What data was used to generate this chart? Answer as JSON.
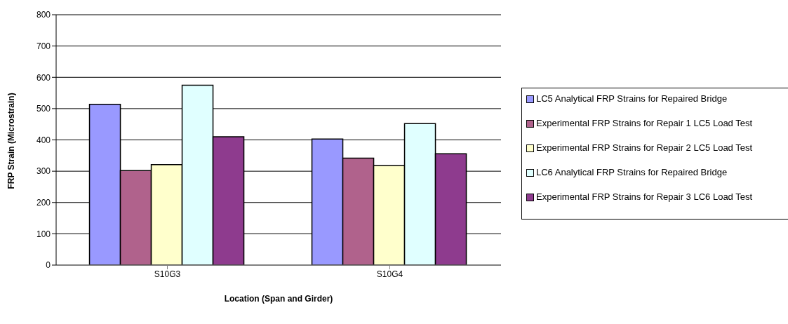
{
  "chart_data": {
    "type": "bar",
    "xlabel": "Location (Span and Girder)",
    "ylabel": "FRP Strain (Microstrain)",
    "categories": [
      "S10G3",
      "S10G4"
    ],
    "series": [
      {
        "name": "LC5 Analytical FRP Strains for Repaired Bridge",
        "color": "#9999ff",
        "values": [
          514,
          403
        ]
      },
      {
        "name": "Experimental FRP Strains for Repair 1 LC5 Load Test",
        "color": "#b0628c",
        "values": [
          302,
          342
        ]
      },
      {
        "name": "Experimental FRP Strains for Repair 2 LC5 Load Test",
        "color": "#ffffcc",
        "values": [
          321,
          318
        ]
      },
      {
        "name": "LC6 Analytical FRP Strains for Repaired Bridge",
        "color": "#e0ffff",
        "values": [
          575,
          452
        ]
      },
      {
        "name": "Experimental FRP Strains for Repair 3 LC6 Load Test",
        "color": "#8e3b8e",
        "values": [
          410,
          356
        ]
      }
    ],
    "ylim": [
      0,
      800
    ],
    "yticks": [
      0,
      100,
      200,
      300,
      400,
      500,
      600,
      700,
      800
    ],
    "grid": "y",
    "legend": "right"
  }
}
